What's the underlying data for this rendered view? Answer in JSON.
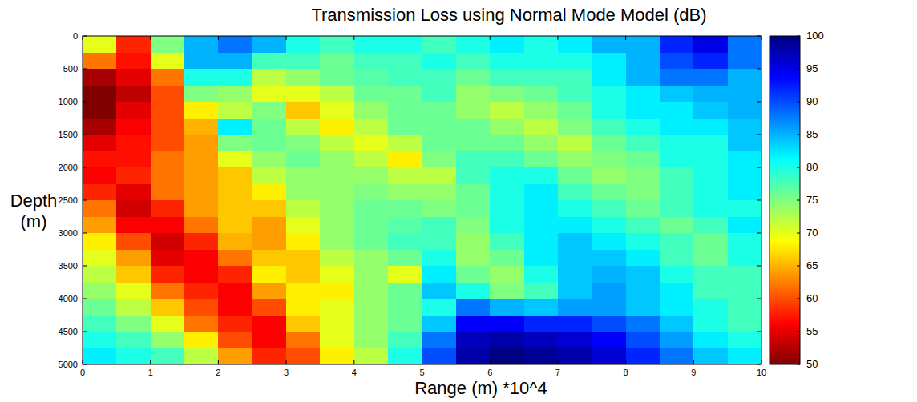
{
  "chart_data": {
    "type": "heatmap",
    "title": "Transmission Loss using Normal Mode Model (dB)",
    "x_label": "Range (m) *10^4",
    "y_label": "Depth (m)",
    "xlim": [
      0,
      10
    ],
    "xticks": [
      0,
      1,
      2,
      3,
      4,
      5,
      6,
      7,
      8,
      9,
      10
    ],
    "ylim": [
      0,
      5000
    ],
    "yticks": [
      0,
      500,
      1000,
      1500,
      2000,
      2500,
      3000,
      3500,
      4000,
      4500,
      5000
    ],
    "x_bins": [
      0,
      0.5,
      1,
      1.5,
      2,
      2.5,
      3,
      3.5,
      4,
      4.5,
      5,
      5.5,
      6,
      6.5,
      7,
      7.5,
      8,
      8.5,
      9,
      9.5,
      10
    ],
    "y_bins": [
      0,
      250,
      500,
      750,
      1000,
      1250,
      1500,
      1750,
      2000,
      2250,
      2500,
      2750,
      3000,
      3250,
      3500,
      3750,
      4000,
      4250,
      4500,
      4750,
      5000
    ],
    "values": [
      [
        70,
        58,
        75,
        85,
        88,
        85,
        80,
        78,
        80,
        80,
        78,
        80,
        82,
        80,
        82,
        85,
        85,
        92,
        95,
        88
      ],
      [
        62,
        57,
        70,
        85,
        85,
        78,
        78,
        76,
        78,
        78,
        80,
        78,
        80,
        80,
        80,
        82,
        85,
        90,
        92,
        88
      ],
      [
        52,
        55,
        62,
        80,
        80,
        72,
        74,
        76,
        77,
        78,
        78,
        76,
        78,
        78,
        78,
        82,
        85,
        88,
        88,
        85
      ],
      [
        50,
        53,
        60,
        75,
        74,
        70,
        70,
        72,
        76,
        76,
        78,
        74,
        75,
        76,
        78,
        80,
        82,
        84,
        85,
        85
      ],
      [
        50,
        55,
        60,
        68,
        72,
        75,
        66,
        70,
        74,
        76,
        76,
        74,
        72,
        74,
        76,
        80,
        82,
        82,
        84,
        85
      ],
      [
        52,
        56,
        60,
        65,
        82,
        76,
        72,
        68,
        72,
        76,
        76,
        76,
        74,
        72,
        75,
        78,
        80,
        82,
        82,
        84
      ],
      [
        55,
        57,
        60,
        64,
        75,
        76,
        75,
        72,
        70,
        72,
        76,
        76,
        76,
        74,
        72,
        76,
        78,
        80,
        80,
        84
      ],
      [
        57,
        57,
        62,
        64,
        70,
        74,
        76,
        74,
        72,
        68,
        75,
        78,
        78,
        76,
        74,
        75,
        76,
        80,
        80,
        82
      ],
      [
        56,
        58,
        62,
        64,
        66,
        72,
        74,
        74,
        74,
        72,
        72,
        78,
        80,
        80,
        76,
        74,
        75,
        78,
        80,
        82
      ],
      [
        58,
        55,
        62,
        64,
        66,
        68,
        74,
        74,
        75,
        74,
        74,
        76,
        80,
        82,
        78,
        76,
        75,
        78,
        80,
        82
      ],
      [
        62,
        54,
        58,
        64,
        66,
        66,
        72,
        74,
        76,
        76,
        75,
        76,
        80,
        82,
        80,
        78,
        76,
        78,
        80,
        80
      ],
      [
        64,
        56,
        56,
        62,
        66,
        64,
        70,
        74,
        76,
        77,
        78,
        75,
        80,
        82,
        82,
        80,
        78,
        76,
        78,
        82
      ],
      [
        68,
        60,
        54,
        58,
        65,
        64,
        68,
        74,
        76,
        78,
        78,
        74,
        78,
        82,
        84,
        82,
        80,
        78,
        76,
        80
      ],
      [
        70,
        64,
        55,
        56,
        62,
        66,
        66,
        72,
        74,
        76,
        80,
        74,
        76,
        82,
        84,
        84,
        82,
        78,
        76,
        80
      ],
      [
        72,
        66,
        58,
        56,
        58,
        68,
        66,
        70,
        74,
        70,
        82,
        76,
        74,
        80,
        84,
        85,
        84,
        80,
        78,
        78
      ],
      [
        74,
        70,
        62,
        58,
        56,
        64,
        68,
        68,
        74,
        76,
        84,
        80,
        75,
        78,
        84,
        86,
        84,
        82,
        78,
        78
      ],
      [
        76,
        72,
        66,
        60,
        56,
        60,
        68,
        70,
        74,
        76,
        80,
        88,
        85,
        84,
        86,
        86,
        84,
        82,
        80,
        78
      ],
      [
        78,
        75,
        70,
        62,
        58,
        56,
        66,
        70,
        74,
        76,
        84,
        94,
        94,
        92,
        92,
        90,
        88,
        84,
        80,
        78
      ],
      [
        80,
        78,
        74,
        68,
        60,
        56,
        62,
        70,
        74,
        78,
        88,
        97,
        98,
        97,
        96,
        94,
        90,
        86,
        82,
        80
      ],
      [
        82,
        80,
        78,
        72,
        64,
        58,
        60,
        68,
        72,
        80,
        90,
        98,
        100,
        99,
        98,
        96,
        92,
        88,
        84,
        82
      ]
    ],
    "colorbar_lim": [
      50,
      100
    ],
    "colorbar_ticks": [
      50,
      55,
      60,
      65,
      70,
      75,
      80,
      85,
      90,
      95,
      100
    ]
  }
}
